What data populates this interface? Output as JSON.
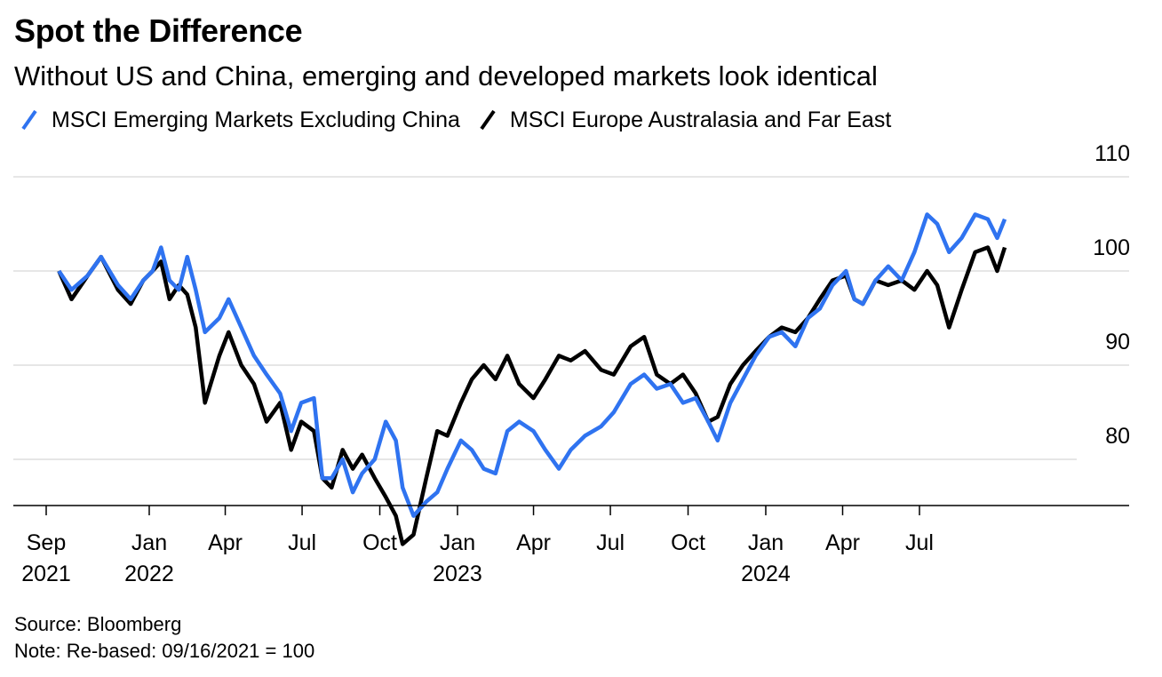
{
  "title": "Spot the Difference",
  "subtitle": "Without US and China, emerging and developed markets look identical",
  "source": "Source: Bloomberg",
  "note": "Note: Re-based: 09/16/2021 = 100",
  "colors": {
    "em": "#2f73f0",
    "eafe": "#000000",
    "grid": "#e6e6e6"
  },
  "chart_data": {
    "type": "line",
    "title": "Spot the Difference",
    "subtitle": "Without US and China, emerging and developed markets look identical",
    "xlabel": "",
    "ylabel": "",
    "ylim": [
      75,
      110
    ],
    "xlim": [
      "2021-09-01",
      "2024-11-20"
    ],
    "y_ticks": [
      80,
      90,
      100,
      110
    ],
    "x_ticks": [
      {
        "date": "2021-09-01",
        "label": "Sep",
        "year": "2021"
      },
      {
        "date": "2022-01-01",
        "label": "Jan",
        "year": "2022"
      },
      {
        "date": "2022-04-01",
        "label": "Apr",
        "year": ""
      },
      {
        "date": "2022-07-01",
        "label": "Jul",
        "year": ""
      },
      {
        "date": "2022-10-01",
        "label": "Oct",
        "year": ""
      },
      {
        "date": "2023-01-01",
        "label": "Jan",
        "year": "2023"
      },
      {
        "date": "2023-04-01",
        "label": "Apr",
        "year": ""
      },
      {
        "date": "2023-07-01",
        "label": "Jul",
        "year": ""
      },
      {
        "date": "2023-10-01",
        "label": "Oct",
        "year": ""
      },
      {
        "date": "2024-01-01",
        "label": "Jan",
        "year": "2024"
      },
      {
        "date": "2024-04-01",
        "label": "Apr",
        "year": ""
      },
      {
        "date": "2024-07-01",
        "label": "Jul",
        "year": ""
      }
    ],
    "grid": true,
    "legend_position": "top-left",
    "series": [
      {
        "name": "MSCI Emerging Markets Excluding China",
        "color": "#2f73f0",
        "points": [
          [
            "2021-09-16",
            100
          ],
          [
            "2021-10-01",
            98
          ],
          [
            "2021-10-20",
            99.5
          ],
          [
            "2021-11-05",
            101.5
          ],
          [
            "2021-11-25",
            98.5
          ],
          [
            "2021-12-10",
            97
          ],
          [
            "2021-12-25",
            99
          ],
          [
            "2022-01-05",
            100
          ],
          [
            "2022-01-15",
            102.5
          ],
          [
            "2022-01-25",
            99
          ],
          [
            "2022-02-05",
            98
          ],
          [
            "2022-02-15",
            101.5
          ],
          [
            "2022-02-25",
            98
          ],
          [
            "2022-03-08",
            93.5
          ],
          [
            "2022-03-25",
            95
          ],
          [
            "2022-04-05",
            97
          ],
          [
            "2022-04-20",
            94
          ],
          [
            "2022-05-05",
            91
          ],
          [
            "2022-05-20",
            89
          ],
          [
            "2022-06-05",
            87
          ],
          [
            "2022-06-18",
            83
          ],
          [
            "2022-06-30",
            86
          ],
          [
            "2022-07-15",
            86.5
          ],
          [
            "2022-07-25",
            78
          ],
          [
            "2022-08-05",
            78
          ],
          [
            "2022-08-18",
            80
          ],
          [
            "2022-08-30",
            76.5
          ],
          [
            "2022-09-10",
            78.5
          ],
          [
            "2022-09-25",
            80
          ],
          [
            "2022-10-08",
            84
          ],
          [
            "2022-10-20",
            82
          ],
          [
            "2022-10-28",
            77
          ],
          [
            "2022-11-10",
            74
          ],
          [
            "2022-11-25",
            75.5
          ],
          [
            "2022-12-08",
            76.5
          ],
          [
            "2022-12-20",
            79
          ],
          [
            "2023-01-05",
            82
          ],
          [
            "2023-01-18",
            81
          ],
          [
            "2023-02-01",
            79
          ],
          [
            "2023-02-15",
            78.5
          ],
          [
            "2023-03-01",
            83
          ],
          [
            "2023-03-15",
            84
          ],
          [
            "2023-04-01",
            83
          ],
          [
            "2023-04-15",
            81
          ],
          [
            "2023-05-01",
            79
          ],
          [
            "2023-05-15",
            81
          ],
          [
            "2023-06-01",
            82.5
          ],
          [
            "2023-06-20",
            83.5
          ],
          [
            "2023-07-05",
            85
          ],
          [
            "2023-07-25",
            88
          ],
          [
            "2023-08-10",
            89
          ],
          [
            "2023-08-25",
            87.5
          ],
          [
            "2023-09-10",
            88
          ],
          [
            "2023-09-25",
            86
          ],
          [
            "2023-10-10",
            86.5
          ],
          [
            "2023-10-25",
            84
          ],
          [
            "2023-11-05",
            82
          ],
          [
            "2023-11-20",
            86
          ],
          [
            "2023-12-05",
            88.5
          ],
          [
            "2023-12-20",
            91
          ],
          [
            "2024-01-05",
            93
          ],
          [
            "2024-01-20",
            93.5
          ],
          [
            "2024-02-05",
            92
          ],
          [
            "2024-02-20",
            95
          ],
          [
            "2024-03-05",
            96
          ],
          [
            "2024-03-20",
            98.5
          ],
          [
            "2024-04-05",
            100
          ],
          [
            "2024-04-15",
            97
          ],
          [
            "2024-04-25",
            96.5
          ],
          [
            "2024-05-10",
            99
          ],
          [
            "2024-05-25",
            100.5
          ],
          [
            "2024-06-10",
            99
          ],
          [
            "2024-06-25",
            102
          ],
          [
            "2024-07-10",
            106
          ],
          [
            "2024-07-22",
            105
          ],
          [
            "2024-08-05",
            102
          ],
          [
            "2024-08-20",
            103.5
          ],
          [
            "2024-09-05",
            106
          ],
          [
            "2024-09-20",
            105.5
          ],
          [
            "2024-10-01",
            103.5
          ],
          [
            "2024-10-10",
            105.5
          ]
        ]
      },
      {
        "name": "MSCI Europe Australasia and Far East",
        "color": "#000000",
        "points": [
          [
            "2021-09-16",
            100
          ],
          [
            "2021-10-01",
            97
          ],
          [
            "2021-10-20",
            99.5
          ],
          [
            "2021-11-05",
            101.5
          ],
          [
            "2021-11-25",
            98
          ],
          [
            "2021-12-10",
            96.5
          ],
          [
            "2021-12-25",
            99
          ],
          [
            "2022-01-05",
            100
          ],
          [
            "2022-01-15",
            101
          ],
          [
            "2022-01-25",
            97
          ],
          [
            "2022-02-05",
            98.5
          ],
          [
            "2022-02-15",
            97.5
          ],
          [
            "2022-02-25",
            94
          ],
          [
            "2022-03-08",
            86
          ],
          [
            "2022-03-25",
            91
          ],
          [
            "2022-04-05",
            93.5
          ],
          [
            "2022-04-20",
            90
          ],
          [
            "2022-05-05",
            88
          ],
          [
            "2022-05-20",
            84
          ],
          [
            "2022-06-05",
            86
          ],
          [
            "2022-06-18",
            81
          ],
          [
            "2022-06-30",
            84
          ],
          [
            "2022-07-15",
            83
          ],
          [
            "2022-07-25",
            78
          ],
          [
            "2022-08-05",
            77
          ],
          [
            "2022-08-18",
            81
          ],
          [
            "2022-08-30",
            79
          ],
          [
            "2022-09-10",
            80.5
          ],
          [
            "2022-09-25",
            78
          ],
          [
            "2022-10-08",
            76
          ],
          [
            "2022-10-20",
            74
          ],
          [
            "2022-10-28",
            71
          ],
          [
            "2022-11-10",
            72
          ],
          [
            "2022-11-25",
            78
          ],
          [
            "2022-12-08",
            83
          ],
          [
            "2022-12-20",
            82.5
          ],
          [
            "2023-01-05",
            86
          ],
          [
            "2023-01-18",
            88.5
          ],
          [
            "2023-02-01",
            90
          ],
          [
            "2023-02-15",
            88.5
          ],
          [
            "2023-03-01",
            91
          ],
          [
            "2023-03-15",
            88
          ],
          [
            "2023-04-01",
            86.5
          ],
          [
            "2023-04-15",
            88.5
          ],
          [
            "2023-05-01",
            91
          ],
          [
            "2023-05-15",
            90.5
          ],
          [
            "2023-06-01",
            91.5
          ],
          [
            "2023-06-20",
            89.5
          ],
          [
            "2023-07-05",
            89
          ],
          [
            "2023-07-25",
            92
          ],
          [
            "2023-08-10",
            93
          ],
          [
            "2023-08-25",
            89
          ],
          [
            "2023-09-10",
            88
          ],
          [
            "2023-09-25",
            89
          ],
          [
            "2023-10-10",
            87
          ],
          [
            "2023-10-25",
            84
          ],
          [
            "2023-11-05",
            84.5
          ],
          [
            "2023-11-20",
            88
          ],
          [
            "2023-12-05",
            90
          ],
          [
            "2023-12-20",
            91.5
          ],
          [
            "2024-01-05",
            93
          ],
          [
            "2024-01-20",
            94
          ],
          [
            "2024-02-05",
            93.5
          ],
          [
            "2024-02-20",
            95
          ],
          [
            "2024-03-05",
            97
          ],
          [
            "2024-03-20",
            99
          ],
          [
            "2024-04-05",
            99.5
          ],
          [
            "2024-04-15",
            97
          ],
          [
            "2024-04-25",
            96.5
          ],
          [
            "2024-05-10",
            99
          ],
          [
            "2024-05-25",
            98.5
          ],
          [
            "2024-06-10",
            99
          ],
          [
            "2024-06-25",
            98
          ],
          [
            "2024-07-10",
            100
          ],
          [
            "2024-07-22",
            98.5
          ],
          [
            "2024-08-05",
            94
          ],
          [
            "2024-08-20",
            98
          ],
          [
            "2024-09-05",
            102
          ],
          [
            "2024-09-20",
            102.5
          ],
          [
            "2024-10-01",
            100
          ],
          [
            "2024-10-10",
            102.5
          ]
        ]
      }
    ]
  }
}
